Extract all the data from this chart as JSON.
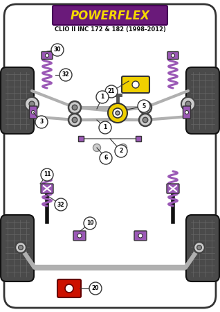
{
  "bg_color": "#ffffff",
  "body_outline": "#222222",
  "tire_color": "#4a4a4a",
  "purple": "#9b59b6",
  "gray": "#aaaaaa",
  "dark_gray": "#555555",
  "yellow": "#f0d000",
  "red": "#cc1100",
  "black": "#111111",
  "arm_color": "#b0b0b0",
  "title_bg": "#6a1a7a",
  "title_color": "#f5d800",
  "subtitle_color": "#111111",
  "title_text": "POWERFLEX",
  "subtitle_text": "CLIO II INC 172 & 182 (1998-2012)"
}
